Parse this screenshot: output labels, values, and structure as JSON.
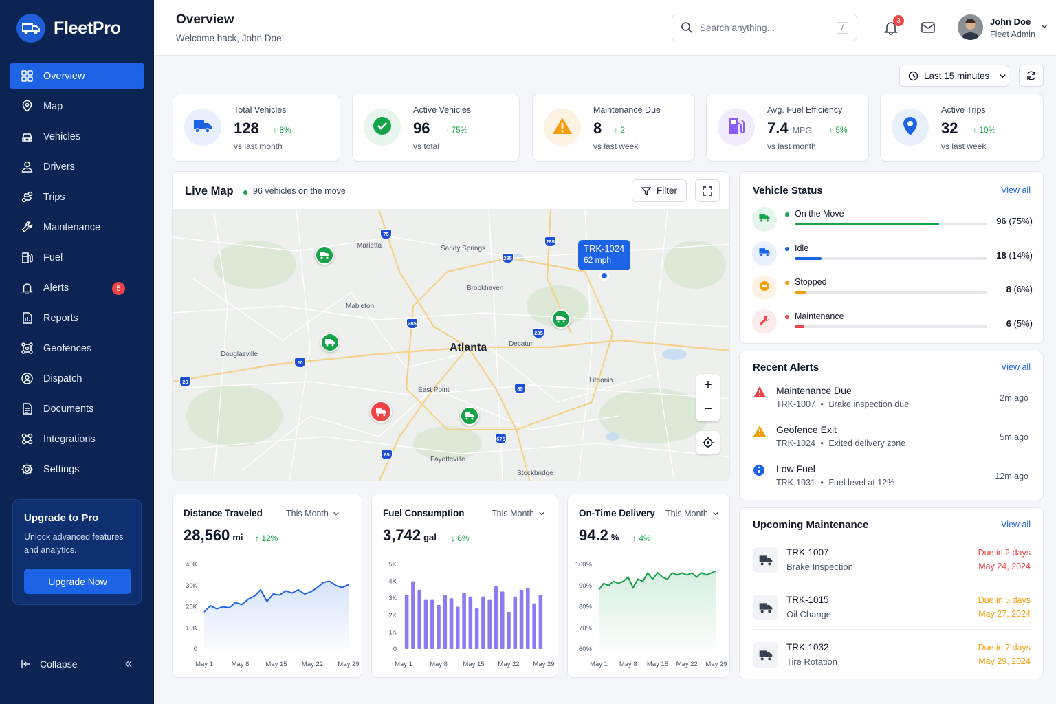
{
  "app": {
    "name": "FleetPro"
  },
  "sidebar": {
    "items": [
      {
        "label": "Overview",
        "icon": "grid-icon",
        "active": true
      },
      {
        "label": "Map",
        "icon": "location-pin-icon"
      },
      {
        "label": "Vehicles",
        "icon": "car-icon"
      },
      {
        "label": "Drivers",
        "icon": "user-icon"
      },
      {
        "label": "Trips",
        "icon": "route-icon"
      },
      {
        "label": "Maintenance",
        "icon": "wrench-icon"
      },
      {
        "label": "Fuel",
        "icon": "fuel-icon"
      },
      {
        "label": "Alerts",
        "icon": "bell-icon",
        "badge": "5"
      },
      {
        "label": "Reports",
        "icon": "report-icon"
      },
      {
        "label": "Geofences",
        "icon": "geofence-icon"
      },
      {
        "label": "Dispatch",
        "icon": "dispatch-icon"
      },
      {
        "label": "Documents",
        "icon": "document-icon"
      },
      {
        "label": "Integrations",
        "icon": "integrations-icon"
      },
      {
        "label": "Settings",
        "icon": "gear-icon"
      }
    ],
    "upgrade": {
      "title": "Upgrade to Pro",
      "text": "Unlock advanced features and analytics.",
      "button": "Upgrade Now"
    },
    "collapse": "Collapse"
  },
  "header": {
    "title": "Overview",
    "subtitle": "Welcome back, John Doe!",
    "search_placeholder": "Search anything...",
    "search_shortcut": "/",
    "notifications": "3",
    "user": {
      "name": "John Doe",
      "role": "Fleet Admin"
    }
  },
  "toolbar": {
    "time_range": "Last 15 minutes"
  },
  "stats": [
    {
      "label": "Total Vehicles",
      "value": "128",
      "unit": "",
      "trend": "↑ 8%",
      "note": "vs last month",
      "color": "#1d63e6",
      "bg": "#e8f0fe"
    },
    {
      "label": "Active Vehicles",
      "value": "96",
      "unit": "",
      "trend": "· 75%",
      "note": "vs total",
      "color": "#16a34a",
      "bg": "#e6f6ec"
    },
    {
      "label": "Maintenance Due",
      "value": "8",
      "unit": "",
      "trend": "↑ 2",
      "note": "vs last week",
      "color": "#f59e0b",
      "bg": "#fef3e2"
    },
    {
      "label": "Avg. Fuel Efficiency",
      "value": "7.4",
      "unit": "MPG",
      "trend": "↑ 5%",
      "note": "vs last month",
      "color": "#8b5cf6",
      "bg": "#f1ebfe"
    },
    {
      "label": "Active Trips",
      "value": "32",
      "unit": "",
      "trend": "↑ 10%",
      "note": "vs last week",
      "color": "#1d63e6",
      "bg": "#e8f0fe"
    }
  ],
  "map": {
    "title": "Live Map",
    "subtitle": "96 vehicles on the move",
    "filter": "Filter",
    "places": [
      "Marietta",
      "Sandy Springs",
      "Brookhaven",
      "Mableton",
      "Atlanta",
      "Decatur",
      "Douglasville",
      "East Point",
      "Lithonia",
      "Fayetteville",
      "Stockbridge"
    ],
    "highways": [
      "75",
      "285",
      "285",
      "285",
      "285",
      "20",
      "20",
      "85",
      "675",
      "85",
      "75"
    ],
    "tooltip": {
      "id": "TRK-1024",
      "speed": "62 mph"
    },
    "zoom_in": "+",
    "zoom_out": "−"
  },
  "vehicle_status": {
    "title": "Vehicle Status",
    "view_all": "View all",
    "items": [
      {
        "label": "On the Move",
        "count": "96",
        "pct": "(75%)",
        "fill": 0.75,
        "color": "#16a34a",
        "bg": "#e6f6ec"
      },
      {
        "label": "Idle",
        "count": "18",
        "pct": "(14%)",
        "fill": 0.14,
        "color": "#1d63e6",
        "bg": "#e8f0fe"
      },
      {
        "label": "Stopped",
        "count": "8",
        "pct": "(6%)",
        "fill": 0.06,
        "color": "#f59e0b",
        "bg": "#fef3e2"
      },
      {
        "label": "Maintenance",
        "count": "6",
        "pct": "(5%)",
        "fill": 0.05,
        "color": "#ef4444",
        "bg": "#fdecec"
      }
    ]
  },
  "recent_alerts": {
    "title": "Recent Alerts",
    "view_all": "View all",
    "items": [
      {
        "title": "Maintenance Due",
        "vehicle": "TRK-1007",
        "detail": "Brake inspection due",
        "time": "2m ago",
        "color": "#ef4444",
        "icon": "warning-icon"
      },
      {
        "title": "Geofence Exit",
        "vehicle": "TRK-1024",
        "detail": "Exited delivery zone",
        "time": "5m ago",
        "color": "#f59e0b",
        "icon": "warning-icon"
      },
      {
        "title": "Low Fuel",
        "vehicle": "TRK-1031",
        "detail": "Fuel level at 12%",
        "time": "12m ago",
        "color": "#1d63e6",
        "icon": "info-icon"
      }
    ]
  },
  "upcoming_maintenance": {
    "title": "Upcoming Maintenance",
    "view_all": "View all",
    "items": [
      {
        "id": "TRK-1007",
        "type": "Brake Inspection",
        "due": "Due in 2 days",
        "date": "May 24, 2024",
        "color": "#ef4444"
      },
      {
        "id": "TRK-1015",
        "type": "Oil Change",
        "due": "Due in 5 days",
        "date": "May 27, 2024",
        "color": "#f59e0b"
      },
      {
        "id": "TRK-1032",
        "type": "Tire Rotation",
        "due": "Due in 7 days",
        "date": "May 29, 2024",
        "color": "#f59e0b"
      }
    ]
  },
  "chart_data": [
    {
      "type": "area",
      "title": "Distance Traveled",
      "period": "This Month",
      "value": "28,560",
      "unit": "mi",
      "delta": "↑ 12%",
      "color": "#1d63e6",
      "yticks": [
        "0",
        "10K",
        "20K",
        "30K",
        "40K"
      ],
      "ylim": [
        0,
        40000
      ],
      "xticks": [
        "May 1",
        "May 8",
        "May 15",
        "May 22",
        "May 29"
      ],
      "values": [
        17500,
        20500,
        19000,
        20000,
        19500,
        22000,
        21000,
        23500,
        25000,
        28000,
        22500,
        26000,
        25500,
        27500,
        26500,
        28000,
        26000,
        27000,
        29000,
        31500,
        32000,
        30000,
        29000,
        30500
      ]
    },
    {
      "type": "bar",
      "title": "Fuel Consumption",
      "period": "This Month",
      "value": "3,742",
      "unit": "gal",
      "delta": "↓ 6%",
      "color": "#8b7cf0",
      "yticks": [
        "0",
        "1K",
        "2K",
        "3K",
        "4K",
        "5K"
      ],
      "ylim": [
        0,
        5000
      ],
      "xticks": [
        "May 1",
        "May 8",
        "May 15",
        "May 22",
        "May 29"
      ],
      "values": [
        3200,
        4000,
        3500,
        2900,
        2900,
        2600,
        3200,
        3000,
        2500,
        3300,
        3100,
        2400,
        3100,
        2900,
        3700,
        3400,
        2200,
        3100,
        3500,
        3600,
        2700,
        3200
      ]
    },
    {
      "type": "area",
      "title": "On-Time Delivery",
      "period": "This Month",
      "value": "94.2",
      "unit": "%",
      "delta": "↑ 4%",
      "color": "#16a34a",
      "yticks": [
        "60%",
        "70%",
        "80%",
        "90%",
        "100%"
      ],
      "ylim": [
        60,
        100
      ],
      "xticks": [
        "May 1",
        "May 8",
        "May 15",
        "May 22",
        "May 29"
      ],
      "values": [
        88,
        91,
        90,
        92,
        91,
        92,
        94,
        89,
        93,
        92,
        96,
        93,
        96,
        94,
        93,
        96,
        95,
        96,
        95,
        96,
        94,
        96,
        95,
        96,
        97
      ]
    }
  ]
}
